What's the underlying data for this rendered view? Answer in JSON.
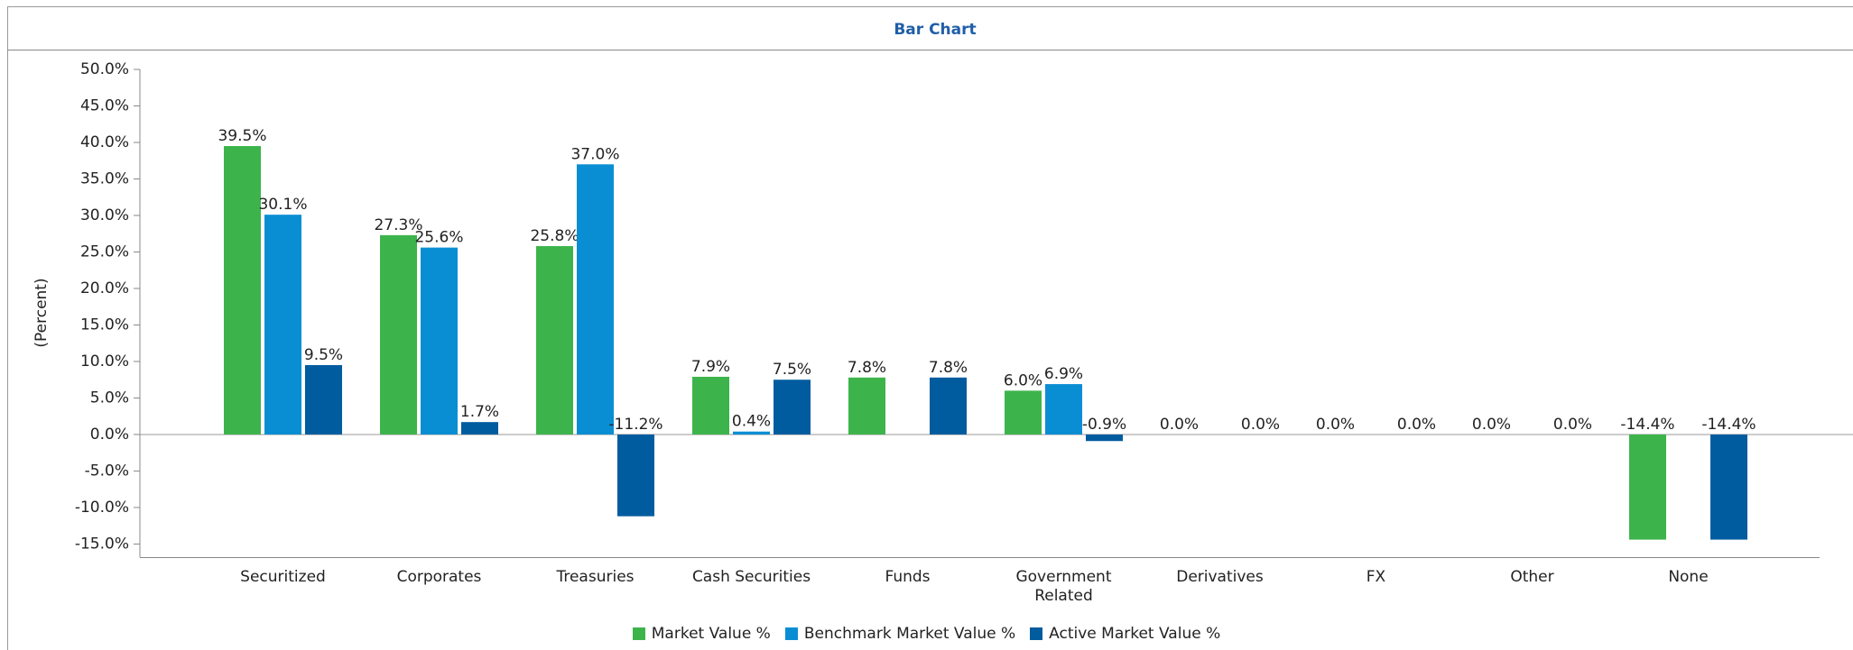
{
  "chart_data": {
    "type": "bar",
    "title": "Bar Chart",
    "y_label": "(Percent)",
    "categories": [
      "Securitized",
      "Corporates",
      "Treasuries",
      "Cash Securities",
      "Funds",
      "Government\nRelated",
      "Derivatives",
      "FX",
      "Other",
      "None"
    ],
    "series": [
      {
        "name": "Market Value %",
        "color": "#3cb44b",
        "values": [
          39.5,
          27.3,
          25.8,
          7.9,
          7.8,
          6.0,
          0.0,
          0.0,
          0.0,
          -14.4
        ],
        "value_labels": [
          "39.5%",
          "27.3%",
          "25.8%",
          "7.9%",
          "7.8%",
          "6.0%",
          "0.0%",
          "0.0%",
          "0.0%",
          "-14.4%"
        ]
      },
      {
        "name": "Benchmark Market Value %",
        "color": "#0a8ed3",
        "values": [
          30.1,
          25.6,
          37.0,
          0.4,
          null,
          6.9,
          null,
          null,
          null,
          null
        ],
        "value_labels": [
          "30.1%",
          "25.6%",
          "37.0%",
          "0.4%",
          null,
          "6.9%",
          null,
          null,
          null,
          null
        ]
      },
      {
        "name": "Active Market Value %",
        "color": "#005c9e",
        "values": [
          9.5,
          1.7,
          -11.2,
          7.5,
          7.8,
          -0.9,
          0.0,
          0.0,
          0.0,
          -14.4
        ],
        "value_labels": [
          "9.5%",
          "1.7%",
          "-11.2%",
          "7.5%",
          "7.8%",
          "-0.9%",
          "0.0%",
          "0.0%",
          "0.0%",
          "-14.4%"
        ]
      }
    ],
    "ylim": [
      -16.8,
      50
    ],
    "yticks": [
      {
        "value": 50,
        "label": "50.0%"
      },
      {
        "value": 45,
        "label": "45.0%"
      },
      {
        "value": 40,
        "label": "40.0%"
      },
      {
        "value": 35,
        "label": "35.0%"
      },
      {
        "value": 30,
        "label": "30.0%"
      },
      {
        "value": 25,
        "label": "25.0%"
      },
      {
        "value": 20,
        "label": "20.0%"
      },
      {
        "value": 15,
        "label": "15.0%"
      },
      {
        "value": 10,
        "label": "10.0%"
      },
      {
        "value": 5,
        "label": "5.0%"
      },
      {
        "value": 0,
        "label": "0.0%"
      },
      {
        "value": -5,
        "label": "-5.0%"
      },
      {
        "value": -10,
        "label": "-10.0%"
      },
      {
        "value": -15,
        "label": "-15.0%"
      }
    ],
    "grid": false,
    "legend": "bottom"
  }
}
